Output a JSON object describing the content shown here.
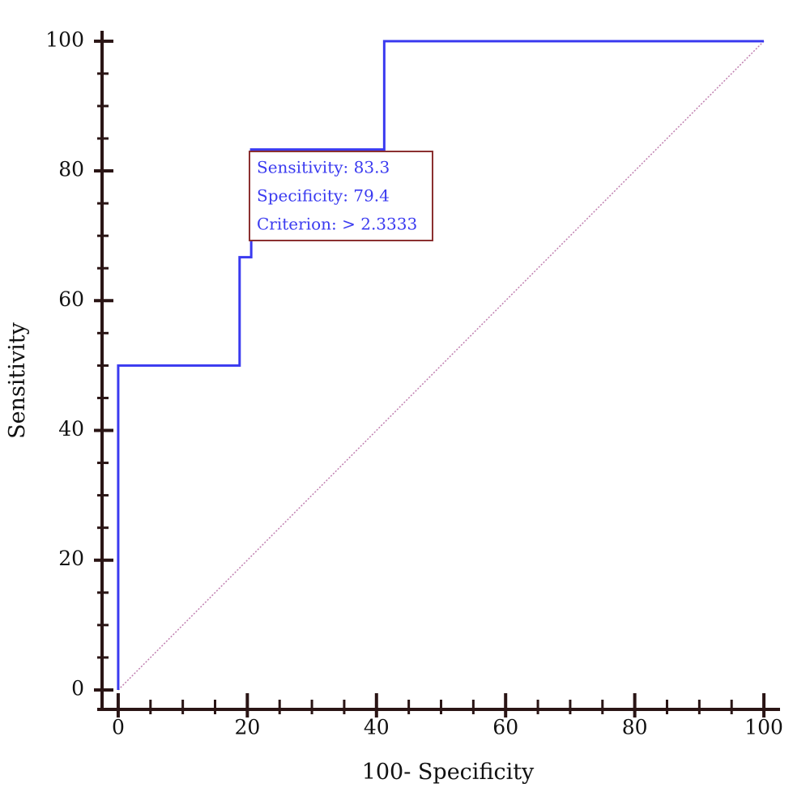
{
  "chart_data": {
    "type": "line",
    "x_label": "100- Specificity",
    "y_label": "Sensitivity",
    "x": [
      0,
      0,
      18.8,
      18.8,
      20.6,
      20.6,
      41.2,
      41.2,
      100
    ],
    "series": [
      {
        "color": "#3a3af0",
        "values": [
          0,
          50,
          50,
          66.7,
          66.7,
          83.3,
          83.3,
          100,
          100
        ]
      }
    ],
    "reference_line": {
      "x": [
        0,
        100
      ],
      "y": [
        0,
        100
      ],
      "color": "#c080b0"
    },
    "xlim": [
      -2.5,
      102.5
    ],
    "ylim": [
      -3,
      101.6
    ],
    "xticks": [
      0,
      20,
      40,
      60,
      80,
      100
    ],
    "yticks": [
      0,
      20,
      40,
      60,
      80,
      100
    ],
    "xminorticks": [
      5,
      10,
      15,
      25,
      30,
      35,
      45,
      50,
      55,
      65,
      70,
      75,
      85,
      90,
      95
    ],
    "yminorticks": [
      5,
      10,
      15,
      25,
      30,
      35,
      45,
      50,
      55,
      65,
      70,
      75,
      85,
      90,
      95
    ],
    "annotation": {
      "lines": [
        "Sensitivity: 83.3",
        "Specificity: 79.4",
        "Criterion: > 2.3333"
      ],
      "color": "#3a3af0",
      "border": "#8b3030"
    }
  }
}
